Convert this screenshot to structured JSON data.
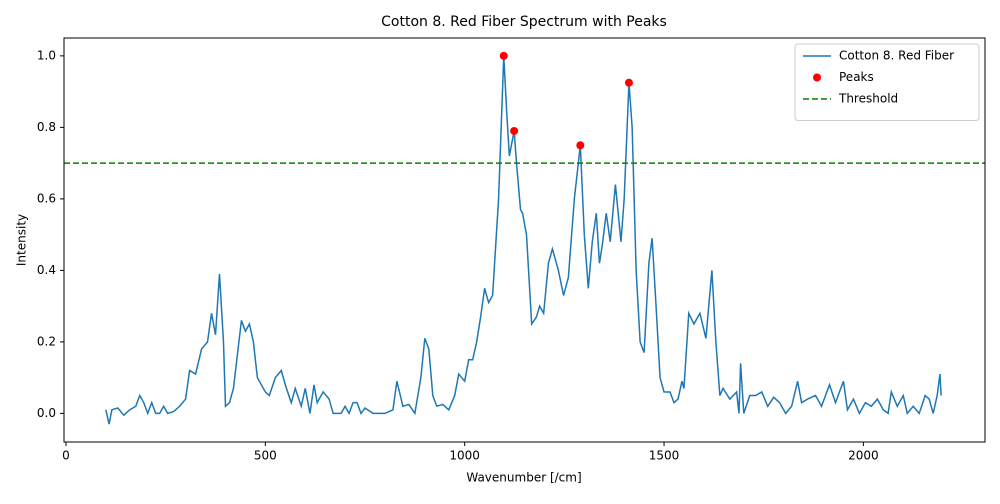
{
  "chart_data": {
    "type": "line",
    "title": "Cotton 8. Red Fiber Spectrum with Peaks",
    "x_label": "Wavenumber [/cm]",
    "y_label": "Intensity",
    "xlim": [
      -5,
      2305
    ],
    "ylim": [
      -0.08,
      1.05
    ],
    "xticks": [
      0,
      500,
      1000,
      1500,
      2000
    ],
    "yticks": [
      {
        "value": 0,
        "label": "0.0"
      },
      {
        "value": 0.2,
        "label": "0.2"
      },
      {
        "value": 0.4,
        "label": "0.4"
      },
      {
        "value": 0.6,
        "label": "0.6"
      },
      {
        "value": 0.8,
        "label": "0.8"
      },
      {
        "value": 1,
        "label": "1.0"
      }
    ],
    "legend": "upper right",
    "series": [
      {
        "name": "Cotton 8. Red Fiber",
        "color": "#1f77b4",
        "x": [
          100,
          108,
          115,
          130,
          145,
          160,
          175,
          185,
          195,
          205,
          215,
          225,
          235,
          245,
          255,
          270,
          285,
          300,
          310,
          325,
          340,
          355,
          365,
          375,
          385,
          395,
          400,
          410,
          420,
          440,
          450,
          460,
          470,
          480,
          500,
          510,
          525,
          540,
          550,
          565,
          575,
          590,
          600,
          612,
          622,
          630,
          645,
          660,
          670,
          690,
          700,
          710,
          720,
          730,
          740,
          750,
          770,
          800,
          820,
          830,
          845,
          860,
          875,
          890,
          900,
          910,
          920,
          930,
          945,
          960,
          975,
          985,
          1000,
          1010,
          1020,
          1030,
          1040,
          1050,
          1060,
          1070,
          1085,
          1098,
          1105,
          1112,
          1124,
          1130,
          1140,
          1145,
          1150,
          1155,
          1168,
          1180,
          1188,
          1198,
          1210,
          1220,
          1235,
          1248,
          1260,
          1275,
          1290,
          1300,
          1310,
          1320,
          1330,
          1338,
          1345,
          1355,
          1365,
          1378,
          1392,
          1400,
          1412,
          1420,
          1430,
          1440,
          1450,
          1462,
          1470,
          1480,
          1490,
          1500,
          1515,
          1525,
          1535,
          1545,
          1550,
          1562,
          1575,
          1590,
          1605,
          1620,
          1630,
          1640,
          1648,
          1665,
          1682,
          1688,
          1692,
          1700,
          1715,
          1730,
          1745,
          1760,
          1775,
          1790,
          1805,
          1820,
          1835,
          1845,
          1860,
          1880,
          1895,
          1915,
          1930,
          1950,
          1960,
          1975,
          1990,
          2005,
          2020,
          2035,
          2050,
          2062,
          2070,
          2085,
          2100,
          2110,
          2125,
          2140,
          2155,
          2165,
          2175,
          2185,
          2192,
          2195
        ],
        "values": [
          0.01,
          -0.03,
          0.01,
          0.015,
          -0.005,
          0.01,
          0.02,
          0.05,
          0.03,
          0.0,
          0.03,
          0.0,
          0.0,
          0.02,
          0.0,
          0.005,
          0.02,
          0.04,
          0.12,
          0.11,
          0.18,
          0.2,
          0.28,
          0.22,
          0.39,
          0.2,
          0.02,
          0.03,
          0.07,
          0.26,
          0.23,
          0.25,
          0.2,
          0.1,
          0.06,
          0.05,
          0.1,
          0.12,
          0.08,
          0.03,
          0.07,
          0.02,
          0.07,
          0.0,
          0.08,
          0.03,
          0.06,
          0.04,
          0.0,
          0.0,
          0.02,
          0.0,
          0.03,
          0.03,
          0.0,
          0.015,
          0.0,
          0.0,
          0.01,
          0.09,
          0.02,
          0.025,
          0.0,
          0.1,
          0.21,
          0.18,
          0.05,
          0.02,
          0.025,
          0.01,
          0.05,
          0.11,
          0.09,
          0.15,
          0.15,
          0.2,
          0.27,
          0.35,
          0.31,
          0.33,
          0.6,
          1.0,
          0.85,
          0.72,
          0.79,
          0.7,
          0.57,
          0.56,
          0.53,
          0.5,
          0.25,
          0.27,
          0.3,
          0.28,
          0.42,
          0.46,
          0.4,
          0.33,
          0.38,
          0.6,
          0.75,
          0.5,
          0.35,
          0.48,
          0.56,
          0.42,
          0.47,
          0.56,
          0.48,
          0.64,
          0.48,
          0.6,
          0.925,
          0.8,
          0.4,
          0.2,
          0.17,
          0.42,
          0.49,
          0.3,
          0.1,
          0.06,
          0.06,
          0.03,
          0.04,
          0.09,
          0.07,
          0.28,
          0.25,
          0.28,
          0.21,
          0.4,
          0.2,
          0.05,
          0.07,
          0.04,
          0.06,
          0.0,
          0.14,
          0.0,
          0.05,
          0.05,
          0.06,
          0.02,
          0.045,
          0.03,
          0.0,
          0.02,
          0.09,
          0.03,
          0.04,
          0.05,
          0.02,
          0.08,
          0.03,
          0.09,
          0.01,
          0.04,
          0.0,
          0.03,
          0.02,
          0.04,
          0.01,
          0.0,
          0.06,
          0.02,
          0.05,
          0.0,
          0.02,
          0.0,
          0.05,
          0.04,
          0.0,
          0.05,
          0.11,
          0.05
        ]
      },
      {
        "name": "Peaks",
        "type": "scatter",
        "color": "#ff0000",
        "x": [
          1098,
          1124,
          1290,
          1412
        ],
        "values": [
          1.0,
          0.79,
          0.75,
          0.925
        ]
      }
    ],
    "threshold": {
      "name": "Threshold",
      "value": 0.7,
      "color": "#008000",
      "style": "dashed"
    }
  }
}
